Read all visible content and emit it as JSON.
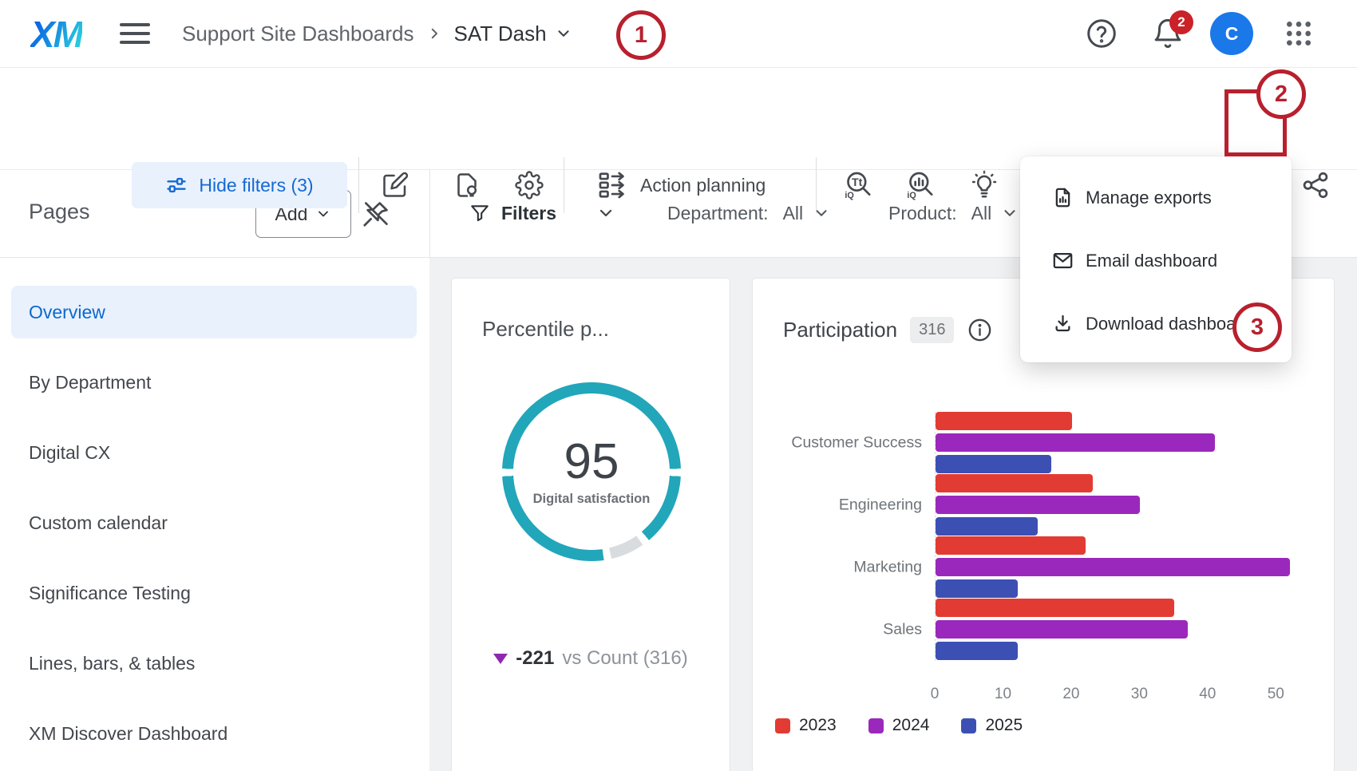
{
  "topbar": {
    "logo": "XM",
    "breadcrumb_root": "Support Site Dashboards",
    "breadcrumb_sep": "›",
    "breadcrumb_current": "SAT Dash",
    "notification_count": "2",
    "avatar_initial": "C"
  },
  "annotations": {
    "step1": "1",
    "step2": "2",
    "step3": "3"
  },
  "toolbar": {
    "hide_filters_label": "Hide filters (3)",
    "action_planning_label": "Action planning"
  },
  "export_menu": {
    "items": [
      {
        "label": "Download dashboard",
        "icon": "download-icon"
      },
      {
        "label": "Email dashboard",
        "icon": "email-icon"
      },
      {
        "label": "Manage exports",
        "icon": "manage-exports-icon"
      }
    ]
  },
  "sidebar": {
    "title": "Pages",
    "add_button_label": "Add",
    "items": [
      {
        "label": "Overview",
        "selected": true
      },
      {
        "label": "By Department",
        "selected": false
      },
      {
        "label": "Digital CX",
        "selected": false
      },
      {
        "label": "Custom calendar",
        "selected": false
      },
      {
        "label": "Significance Testing",
        "selected": false
      },
      {
        "label": "Lines, bars, & tables",
        "selected": false
      },
      {
        "label": "XM Discover Dashboard",
        "selected": false
      }
    ]
  },
  "filters_bar": {
    "filters_label": "Filters",
    "department_label": "Department:",
    "department_value": "All",
    "product_label": "Product:",
    "product_value": "All"
  },
  "percentile_card": {
    "title": "Percentile p..."
  },
  "participation_card": {
    "title": "Participation",
    "badge": "316"
  },
  "colors": {
    "accent_blue": "#0c68cf",
    "annotation_red": "#b8202e",
    "teal": "#22a6ba",
    "badge_red": "#cb2128",
    "avatar_blue": "#1a78e8",
    "delta_purple": "#8e28ae"
  },
  "chart_data": [
    {
      "type": "pie",
      "variant": "donut-gauge",
      "title": "Percentile p...",
      "value": 95,
      "max": 100,
      "label": "Digital satisfaction",
      "delta": "-221",
      "delta_direction": "down",
      "comparison": "vs Count (316)",
      "ring_color": "#22a6ba"
    },
    {
      "type": "bar",
      "orientation": "horizontal",
      "title": "Participation",
      "total_count": 316,
      "categories": [
        "Customer Success",
        "Engineering",
        "Marketing",
        "Sales"
      ],
      "series": [
        {
          "name": "2023",
          "color": "#e23b33",
          "values": [
            20,
            23,
            22,
            35
          ]
        },
        {
          "name": "2024",
          "color": "#9b28bc",
          "values": [
            41,
            30,
            52,
            37
          ]
        },
        {
          "name": "2025",
          "color": "#3c50b4",
          "values": [
            17,
            15,
            12,
            12
          ]
        }
      ],
      "xlim": [
        0,
        55
      ],
      "ticks": [
        0,
        10,
        20,
        30,
        40,
        50
      ],
      "grid": false,
      "legend_position": "bottom"
    }
  ]
}
